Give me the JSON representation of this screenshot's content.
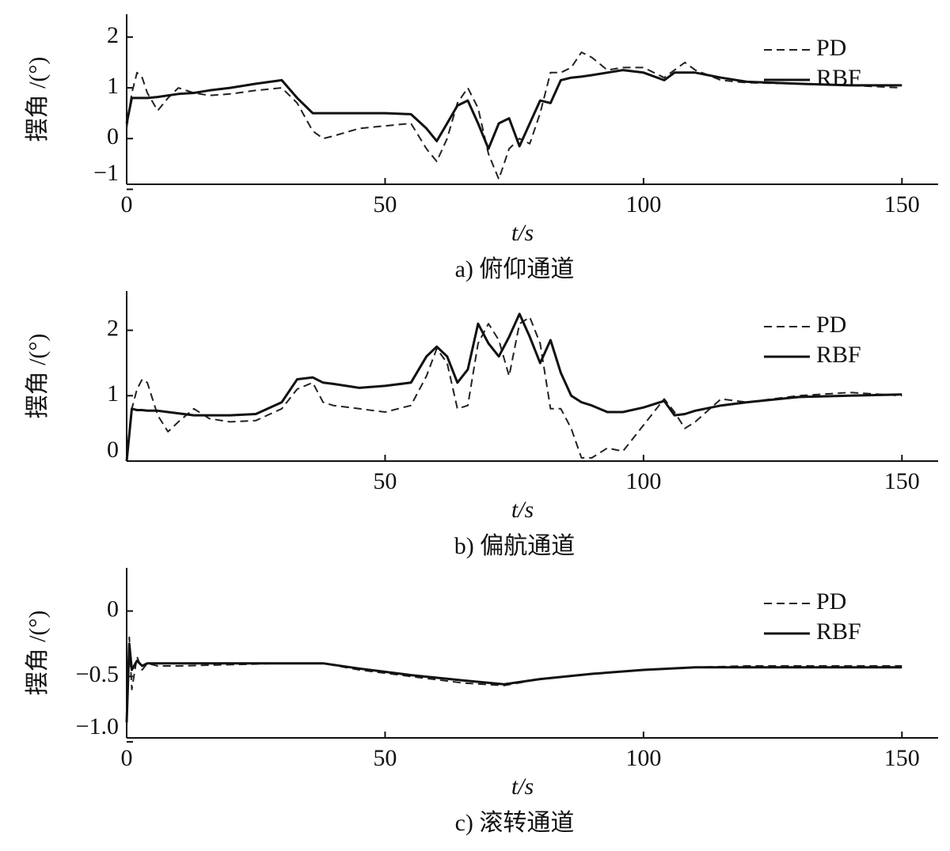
{
  "chart_data": [
    {
      "type": "line",
      "caption": "a) 俯仰通道",
      "xlabel": "t/s",
      "ylabel": "摆角 /(°)",
      "x": [
        0,
        1,
        2,
        3,
        4,
        6,
        8,
        10,
        13,
        16,
        20,
        25,
        30,
        33,
        36,
        38,
        40,
        45,
        50,
        55,
        58,
        60,
        62,
        64,
        66,
        68,
        70,
        72,
        74,
        76,
        78,
        80,
        82,
        84,
        86,
        88,
        90,
        93,
        96,
        100,
        104,
        106,
        108,
        110,
        115,
        120,
        130,
        140,
        150
      ],
      "series": [
        {
          "name": "PD",
          "color": "#222222",
          "style": "dashed",
          "values": [
            0.2,
            0.9,
            1.3,
            1.2,
            0.9,
            0.55,
            0.8,
            1.0,
            0.9,
            0.85,
            0.88,
            0.95,
            1.0,
            0.7,
            0.15,
            0.0,
            0.05,
            0.2,
            0.25,
            0.3,
            -0.2,
            -0.45,
            0.0,
            0.7,
            1.0,
            0.6,
            -0.3,
            -0.8,
            -0.2,
            0.0,
            -0.1,
            0.5,
            1.3,
            1.3,
            1.4,
            1.7,
            1.6,
            1.35,
            1.4,
            1.4,
            1.2,
            1.35,
            1.5,
            1.35,
            1.15,
            1.1,
            1.08,
            1.05,
            1.0
          ]
        },
        {
          "name": "RBF",
          "color": "#111111",
          "style": "solid",
          "values": [
            0.3,
            0.8,
            0.8,
            0.8,
            0.8,
            0.82,
            0.85,
            0.88,
            0.9,
            0.95,
            1.0,
            1.08,
            1.15,
            0.8,
            0.5,
            0.5,
            0.5,
            0.5,
            0.5,
            0.48,
            0.2,
            -0.05,
            0.3,
            0.65,
            0.75,
            0.3,
            -0.2,
            0.3,
            0.4,
            -0.15,
            0.3,
            0.75,
            0.7,
            1.15,
            1.2,
            1.22,
            1.25,
            1.3,
            1.35,
            1.3,
            1.15,
            1.3,
            1.3,
            1.3,
            1.2,
            1.12,
            1.08,
            1.05,
            1.05
          ]
        }
      ],
      "xlim": [
        0,
        157
      ],
      "xticks": [
        0,
        50,
        100,
        150
      ],
      "ylim": [
        -0.9,
        2.45
      ],
      "yticks": [
        {
          "value": -1,
          "label": "−1"
        },
        0,
        1,
        2
      ],
      "legend": "upper right"
    },
    {
      "type": "line",
      "caption": "b) 偏航通道",
      "xlabel": "t/s",
      "ylabel": "摆角 /(°)",
      "x": [
        0,
        1,
        2,
        3,
        4,
        6,
        8,
        10,
        13,
        16,
        20,
        25,
        30,
        33,
        36,
        38,
        40,
        45,
        50,
        55,
        58,
        60,
        62,
        64,
        66,
        68,
        70,
        72,
        74,
        76,
        78,
        80,
        82,
        84,
        86,
        88,
        90,
        93,
        96,
        100,
        104,
        106,
        108,
        110,
        115,
        120,
        130,
        140,
        150
      ],
      "series": [
        {
          "name": "PD",
          "color": "#222222",
          "style": "dashed",
          "values": [
            0.0,
            0.8,
            1.1,
            1.25,
            1.2,
            0.7,
            0.45,
            0.6,
            0.8,
            0.65,
            0.6,
            0.62,
            0.8,
            1.1,
            1.2,
            0.9,
            0.85,
            0.8,
            0.75,
            0.85,
            1.3,
            1.72,
            1.5,
            0.8,
            0.85,
            1.8,
            2.1,
            1.85,
            1.3,
            2.1,
            2.2,
            1.8,
            0.8,
            0.8,
            0.5,
            0.05,
            0.05,
            0.2,
            0.15,
            0.55,
            0.95,
            0.75,
            0.5,
            0.6,
            0.95,
            0.9,
            1.0,
            1.05,
            1.0
          ]
        },
        {
          "name": "RBF",
          "color": "#111111",
          "style": "solid",
          "values": [
            0.0,
            0.8,
            0.78,
            0.78,
            0.77,
            0.77,
            0.75,
            0.73,
            0.7,
            0.7,
            0.7,
            0.72,
            0.9,
            1.25,
            1.28,
            1.2,
            1.18,
            1.12,
            1.15,
            1.2,
            1.6,
            1.75,
            1.6,
            1.2,
            1.4,
            2.1,
            1.8,
            1.6,
            1.9,
            2.25,
            1.9,
            1.5,
            1.85,
            1.35,
            1.0,
            0.9,
            0.85,
            0.75,
            0.75,
            0.82,
            0.92,
            0.7,
            0.72,
            0.77,
            0.85,
            0.9,
            0.98,
            1.0,
            1.02
          ]
        }
      ],
      "xlim": [
        0,
        157
      ],
      "xticks": [
        50,
        100,
        150
      ],
      "ylim": [
        0,
        2.6
      ],
      "yticks": [
        0,
        1,
        2
      ],
      "legend": "upper right"
    },
    {
      "type": "line",
      "caption": "c) 滚转通道",
      "xlabel": "t/s",
      "ylabel": "摆角 /(°)",
      "x": [
        0,
        0.5,
        1,
        2,
        3,
        4,
        6,
        10,
        20,
        30,
        38,
        45,
        55,
        65,
        73,
        80,
        90,
        100,
        110,
        120,
        130,
        140,
        150
      ],
      "series": [
        {
          "name": "PD",
          "color": "#222222",
          "style": "dashed",
          "values": [
            -0.9,
            -0.2,
            -0.6,
            -0.35,
            -0.45,
            -0.4,
            -0.42,
            -0.42,
            -0.41,
            -0.4,
            -0.4,
            -0.45,
            -0.5,
            -0.55,
            -0.57,
            -0.52,
            -0.48,
            -0.45,
            -0.43,
            -0.42,
            -0.42,
            -0.42,
            -0.42
          ]
        },
        {
          "name": "RBF",
          "color": "#111111",
          "style": "solid",
          "values": [
            -0.85,
            -0.25,
            -0.45,
            -0.38,
            -0.42,
            -0.4,
            -0.4,
            -0.4,
            -0.4,
            -0.4,
            -0.4,
            -0.44,
            -0.49,
            -0.53,
            -0.56,
            -0.52,
            -0.48,
            -0.45,
            -0.43,
            -0.43,
            -0.43,
            -0.43,
            -0.43
          ]
        }
      ],
      "xlim": [
        0,
        157
      ],
      "xticks": [
        0,
        50,
        100,
        150
      ],
      "ylim": [
        -0.97,
        0.33
      ],
      "yticks": [
        {
          "value": -1,
          "label": "−1.0"
        },
        {
          "value": -0.5,
          "label": "−0.5"
        },
        0
      ],
      "legend": "upper right"
    }
  ]
}
